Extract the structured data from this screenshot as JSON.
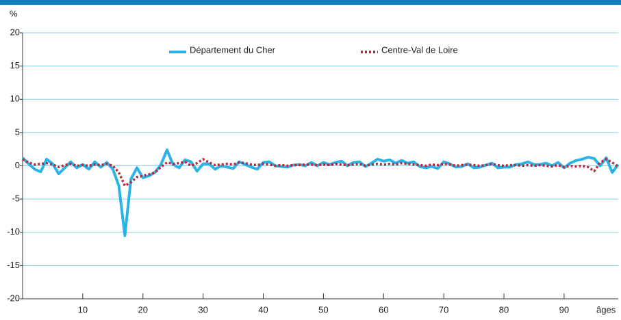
{
  "chart_data": {
    "type": "line",
    "y_label": "%",
    "x_label": "âges",
    "x": [
      0,
      1,
      2,
      3,
      4,
      5,
      6,
      7,
      8,
      9,
      10,
      11,
      12,
      13,
      14,
      15,
      16,
      17,
      18,
      19,
      20,
      21,
      22,
      23,
      24,
      25,
      26,
      27,
      28,
      29,
      30,
      31,
      32,
      33,
      34,
      35,
      36,
      37,
      38,
      39,
      40,
      41,
      42,
      43,
      44,
      45,
      46,
      47,
      48,
      49,
      50,
      51,
      52,
      53,
      54,
      55,
      56,
      57,
      58,
      59,
      60,
      61,
      62,
      63,
      64,
      65,
      66,
      67,
      68,
      69,
      70,
      71,
      72,
      73,
      74,
      75,
      76,
      77,
      78,
      79,
      80,
      81,
      82,
      83,
      84,
      85,
      86,
      87,
      88,
      89,
      90,
      91,
      92,
      93,
      94,
      95,
      96,
      97,
      98,
      99
    ],
    "series": [
      {
        "name": "Département du Cher",
        "color": "#29b3e6",
        "dash": "solid",
        "values": [
          1.2,
          0.3,
          -0.5,
          -0.9,
          1.0,
          0.3,
          -1.2,
          -0.3,
          0.6,
          -0.3,
          0.2,
          -0.5,
          0.6,
          -0.2,
          0.5,
          -0.5,
          -3.0,
          -10.5,
          -2.0,
          -0.3,
          -1.8,
          -1.5,
          -1.0,
          0.2,
          2.4,
          0.2,
          -0.3,
          0.9,
          0.6,
          -0.8,
          0.3,
          0.3,
          -0.5,
          0.0,
          -0.2,
          -0.4,
          0.6,
          0.2,
          -0.2,
          -0.5,
          0.5,
          0.6,
          0.0,
          -0.1,
          -0.2,
          0.1,
          0.2,
          0.0,
          0.5,
          0.0,
          0.5,
          0.2,
          0.5,
          0.7,
          0.0,
          0.5,
          0.6,
          -0.1,
          0.4,
          1.0,
          0.7,
          0.9,
          0.4,
          0.8,
          0.4,
          0.6,
          -0.1,
          -0.3,
          -0.1,
          -0.4,
          0.6,
          0.3,
          -0.2,
          -0.1,
          0.3,
          -0.3,
          -0.2,
          0.1,
          0.4,
          -0.3,
          -0.2,
          -0.2,
          0.2,
          0.3,
          0.6,
          0.2,
          0.2,
          0.4,
          0.0,
          0.5,
          -0.3,
          0.4,
          0.8,
          1.0,
          1.3,
          1.1,
          0.0,
          1.2,
          -1.0,
          0.2
        ]
      },
      {
        "name": "Centre-Val de Loire",
        "color": "#b8283a",
        "dash": "dotted",
        "values": [
          1.0,
          0.5,
          0.2,
          0.3,
          0.4,
          0.2,
          -0.2,
          0.1,
          0.3,
          0.0,
          0.1,
          0.0,
          0.2,
          0.1,
          0.3,
          0.0,
          -1.0,
          -3.0,
          -2.5,
          -1.7,
          -1.5,
          -1.3,
          -1.0,
          -0.2,
          0.5,
          0.3,
          0.4,
          0.6,
          0.0,
          0.4,
          1.0,
          0.5,
          0.1,
          0.2,
          0.3,
          0.2,
          0.5,
          0.4,
          0.2,
          0.1,
          0.3,
          0.2,
          0.0,
          0.1,
          0.0,
          0.1,
          0.1,
          0.2,
          0.2,
          0.1,
          0.2,
          0.1,
          0.3,
          0.2,
          0.1,
          0.2,
          0.3,
          0.0,
          0.2,
          0.3,
          0.2,
          0.3,
          0.2,
          0.4,
          0.3,
          0.2,
          0.1,
          0.0,
          0.2,
          0.1,
          0.3,
          0.2,
          0.0,
          0.1,
          0.2,
          0.1,
          0.0,
          0.1,
          0.3,
          0.1,
          0.0,
          0.1,
          0.1,
          0.0,
          0.1,
          0.0,
          0.1,
          0.0,
          -0.1,
          0.1,
          -0.2,
          0.0,
          -0.1,
          0.0,
          -0.2,
          -0.8,
          0.5,
          1.0,
          0.5,
          -0.2
        ]
      }
    ],
    "xlim": [
      0,
      99
    ],
    "ylim": [
      -20,
      20
    ],
    "xticks": [
      10,
      20,
      30,
      40,
      50,
      60,
      70,
      80,
      90
    ],
    "yticks": [
      -20,
      -15,
      -10,
      -5,
      0,
      5,
      10,
      15,
      20
    ],
    "grid": true,
    "grid_color": "#5bc0e8",
    "header_color": "#0b7fc0"
  }
}
